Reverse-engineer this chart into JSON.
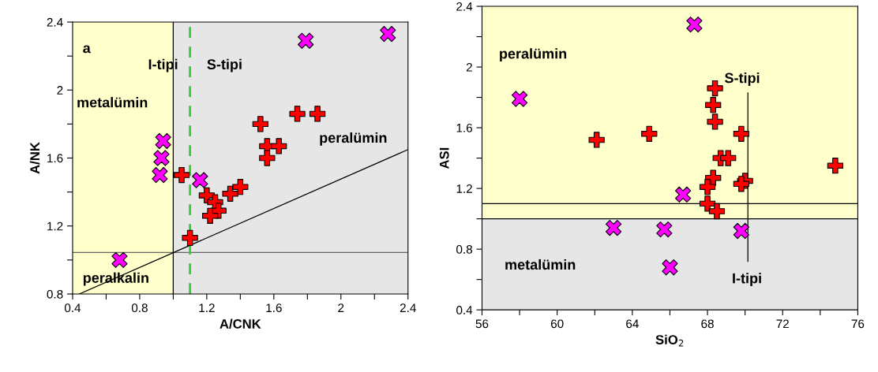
{
  "chart_data": [
    {
      "type": "scatter",
      "xlabel": "A/CNK",
      "ylabel": "A/NK",
      "xlim": [
        0.4,
        2.4
      ],
      "ylim": [
        0.8,
        2.4
      ],
      "xticks": [
        0.4,
        {
          "value": 0.6,
          "label": null
        },
        0.8,
        {
          "value": 1.0,
          "label": null
        },
        1.2,
        {
          "value": 1.4,
          "label": null
        },
        1.6,
        {
          "value": 1.8,
          "label": null
        },
        {
          "value": 2.0,
          "label": "2"
        },
        {
          "value": 2.2,
          "label": null
        },
        2.4
      ],
      "yticks": [
        0.8,
        {
          "value": 1.0,
          "label": null
        },
        1.2,
        {
          "value": 1.4,
          "label": null
        },
        1.6,
        {
          "value": 1.8,
          "label": null
        },
        {
          "value": 2.0,
          "label": "2"
        },
        {
          "value": 2.2,
          "label": null
        },
        2.4
      ],
      "grid": false,
      "bands": [
        {
          "axis": "x",
          "from": 0.4,
          "to": 1.0,
          "color": "#ffffcc"
        },
        {
          "axis": "x",
          "from": 1.0,
          "to": 2.4,
          "color": "#e6e6e6"
        }
      ],
      "ref_lines": [
        {
          "axis": "y",
          "value": 1.044,
          "color": "#666666",
          "line_style": "solid"
        },
        {
          "axis": "x",
          "value": 1.0,
          "color": "#000000",
          "line_style": "solid"
        },
        {
          "axis": "x",
          "value": 1.1,
          "color": "#33cc33",
          "line_style": "dashed"
        }
      ],
      "series": [
        {
          "type": "line",
          "color": "#000000",
          "marker": "none",
          "line_style": "solid",
          "x": [
            0.44,
            2.4
          ],
          "values": [
            0.8,
            1.65
          ]
        },
        {
          "color": "#ff00ff",
          "marker": "cross",
          "x": [
            2.28,
            1.79,
            0.94,
            0.93,
            0.92,
            1.16,
            0.68
          ],
          "values": [
            2.33,
            2.29,
            1.7,
            1.6,
            1.5,
            1.47,
            1.0
          ]
        },
        {
          "color": "#ff0000",
          "marker": "plus",
          "x": [
            1.05,
            1.1,
            1.52,
            1.74,
            1.86,
            1.56,
            1.63,
            1.56,
            1.4,
            1.34,
            1.2,
            1.25,
            1.27,
            1.22
          ],
          "values": [
            1.5,
            1.13,
            1.8,
            1.86,
            1.86,
            1.67,
            1.67,
            1.6,
            1.43,
            1.39,
            1.38,
            1.34,
            1.29,
            1.26
          ]
        }
      ],
      "annotations": [
        "a",
        "I-tipi",
        "S-tipi",
        "metalümin",
        "peralümin",
        "peralkalin"
      ]
    },
    {
      "type": "scatter",
      "xlabel": "SiO$_{2}$",
      "ylabel": "ASI",
      "xlim": [
        56,
        76
      ],
      "ylim": [
        0.4,
        2.4
      ],
      "xticks": [
        56,
        {
          "value": 58,
          "label": null
        },
        60,
        {
          "value": 62,
          "label": null
        },
        64,
        {
          "value": 66,
          "label": null
        },
        68,
        {
          "value": 70,
          "label": null
        },
        72,
        {
          "value": 74,
          "label": null
        },
        76
      ],
      "yticks": [
        0.4,
        {
          "value": 0.6,
          "label": null
        },
        0.8,
        {
          "value": 1.0,
          "label": null
        },
        1.2,
        {
          "value": 1.4,
          "label": null
        },
        1.6,
        {
          "value": 1.8,
          "label": null
        },
        {
          "value": 2.0,
          "label": "2"
        },
        {
          "value": 2.2,
          "label": null
        },
        2.4
      ],
      "grid": false,
      "bands": [
        {
          "axis": "y",
          "from": 1.0,
          "to": 2.4,
          "color": "#ffffcc"
        },
        {
          "axis": "y",
          "from": 0.4,
          "to": 1.0,
          "color": "#e6e6e6"
        }
      ],
      "ref_lines": [
        {
          "axis": "y",
          "value": 1.1,
          "color": "#000000",
          "line_style": "solid"
        },
        {
          "axis": "y",
          "value": 1.0,
          "color": "#000000",
          "line_style": "solid"
        }
      ],
      "series": [
        {
          "type": "line",
          "color": "#000000",
          "marker": "none",
          "line_style": "solid",
          "x": [
            70.15,
            70.15
          ],
          "values": [
            0.72,
            1.83
          ]
        },
        {
          "color": "#ff00ff",
          "marker": "cross",
          "x": [
            67.3,
            58.0,
            66.7,
            63.0,
            65.7,
            69.8,
            66.0
          ],
          "values": [
            2.28,
            1.79,
            1.16,
            0.94,
            0.93,
            0.92,
            0.68
          ]
        },
        {
          "color": "#ff0000",
          "marker": "plus",
          "x": [
            68.4,
            68.3,
            68.4,
            69.8,
            64.9,
            62.1,
            68.7,
            69.1,
            74.8,
            68.3,
            70.0,
            69.8,
            68.0,
            68.0,
            68.5
          ],
          "values": [
            1.86,
            1.75,
            1.64,
            1.56,
            1.56,
            1.52,
            1.4,
            1.4,
            1.35,
            1.27,
            1.25,
            1.23,
            1.21,
            1.1,
            1.05
          ]
        }
      ],
      "annotations": [
        "peralümin",
        "S-tipi",
        "metalümin",
        "I-tipi"
      ]
    }
  ]
}
